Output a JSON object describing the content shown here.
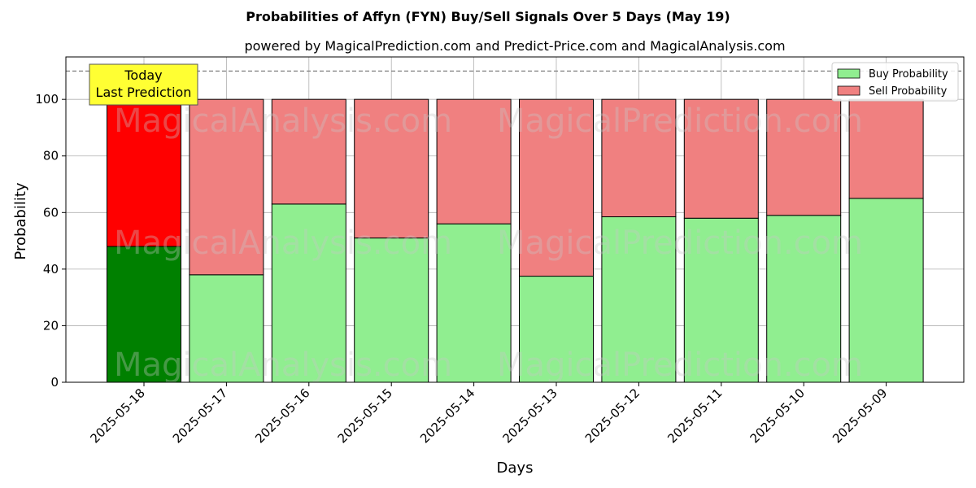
{
  "chart_data": {
    "type": "bar",
    "stacked": true,
    "title": "Probabilities of Affyn (FYN) Buy/Sell Signals Over 5 Days (May 19)",
    "subtitle": "powered by MagicalPrediction.com and Predict-Price.com and MagicalAnalysis.com",
    "xlabel": "Days",
    "ylabel": "Probability",
    "ylim": [
      0,
      115
    ],
    "yticks": [
      0,
      20,
      40,
      60,
      80,
      100
    ],
    "grid": true,
    "legend_position": "top-right",
    "reference_line": 110,
    "categories": [
      "2025-05-18",
      "2025-05-17",
      "2025-05-16",
      "2025-05-15",
      "2025-05-14",
      "2025-05-13",
      "2025-05-12",
      "2025-05-11",
      "2025-05-10",
      "2025-05-09"
    ],
    "series": [
      {
        "name": "Buy Probability",
        "color": "#90ee90",
        "highlight_color": "#008000",
        "values": [
          48,
          38,
          63,
          51,
          56,
          37.5,
          58.5,
          58,
          59,
          65
        ]
      },
      {
        "name": "Sell Probability",
        "color": "#f08080",
        "highlight_color": "#ff0000",
        "values": [
          52,
          62,
          37,
          49,
          44,
          62.5,
          41.5,
          42,
          41,
          35
        ]
      }
    ],
    "annotation": {
      "lines": [
        "Today",
        "Last Prediction"
      ],
      "bg_color": "#ffff33"
    },
    "watermarks": [
      "MagicalAnalysis.com",
      "MagicalPrediction.com"
    ]
  }
}
